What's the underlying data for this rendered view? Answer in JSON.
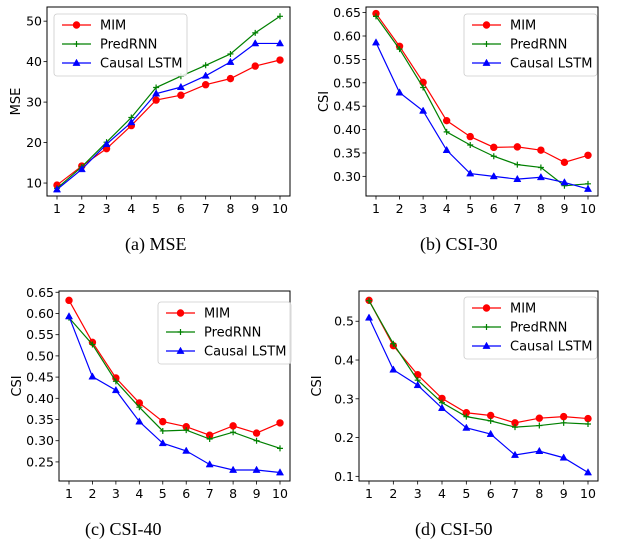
{
  "figure": {
    "colors": {
      "MIM": "#ff0000",
      "PredRNN": "#008000",
      "Causal LSTM": "#0000ff"
    },
    "markers": {
      "MIM": "circle",
      "PredRNN": "plus",
      "Causal LSTM": "triangle"
    }
  },
  "chart_data": [
    {
      "type": "line",
      "caption": "(a)  MSE",
      "title": "",
      "xlabel": "",
      "ylabel": "MSE",
      "x": [
        1,
        2,
        3,
        4,
        5,
        6,
        7,
        8,
        9,
        10
      ],
      "xticks": [
        "1",
        "2",
        "3",
        "4",
        "5",
        "6",
        "7",
        "8",
        "9",
        "10"
      ],
      "yticks": [
        10,
        20,
        30,
        40,
        50
      ],
      "ytick_labels": [
        "10",
        "20",
        "30",
        "40",
        "50"
      ],
      "ylim": [
        6.8,
        53.5
      ],
      "legend": "top-left",
      "grid": false,
      "series": [
        {
          "name": "MIM",
          "values": [
            9.5,
            14.2,
            18.5,
            24.2,
            30.5,
            31.7,
            34.3,
            35.8,
            38.9,
            40.4
          ]
        },
        {
          "name": "PredRNN",
          "values": [
            8.7,
            14.0,
            20.1,
            26.2,
            33.6,
            36.4,
            39.1,
            41.9,
            47.1,
            51.2
          ]
        },
        {
          "name": "Causal LSTM",
          "values": [
            8.4,
            13.4,
            19.6,
            25.0,
            32.1,
            33.7,
            36.5,
            39.9,
            44.5,
            44.5
          ]
        }
      ]
    },
    {
      "type": "line",
      "caption": "(b)  CSI-30",
      "title": "",
      "xlabel": "",
      "ylabel": "CSI",
      "x": [
        1,
        2,
        3,
        4,
        5,
        6,
        7,
        8,
        9,
        10
      ],
      "xticks": [
        "1",
        "2",
        "3",
        "4",
        "5",
        "6",
        "7",
        "8",
        "9",
        "10"
      ],
      "yticks": [
        0.3,
        0.35,
        0.4,
        0.45,
        0.5,
        0.55,
        0.6,
        0.65
      ],
      "ytick_labels": [
        "0.30",
        "0.35",
        "0.40",
        "0.45",
        "0.50",
        "0.55",
        "0.60",
        "0.65"
      ],
      "ylim": [
        0.258,
        0.662
      ],
      "legend": "top-right",
      "grid": false,
      "series": [
        {
          "name": "MIM",
          "values": [
            0.648,
            0.578,
            0.501,
            0.419,
            0.385,
            0.362,
            0.363,
            0.356,
            0.33,
            0.345
          ]
        },
        {
          "name": "PredRNN",
          "values": [
            0.642,
            0.572,
            0.49,
            0.395,
            0.367,
            0.343,
            0.325,
            0.319,
            0.28,
            0.284
          ]
        },
        {
          "name": "Causal LSTM",
          "values": [
            0.586,
            0.479,
            0.44,
            0.356,
            0.306,
            0.3,
            0.294,
            0.298,
            0.287,
            0.273
          ]
        }
      ]
    },
    {
      "type": "line",
      "caption": "(c)  CSI-40",
      "title": "",
      "xlabel": "",
      "ylabel": "CSI",
      "x": [
        1,
        2,
        3,
        4,
        5,
        6,
        7,
        8,
        9,
        10
      ],
      "xticks": [
        "1",
        "2",
        "3",
        "4",
        "5",
        "6",
        "7",
        "8",
        "9",
        "10"
      ],
      "yticks": [
        0.25,
        0.3,
        0.35,
        0.4,
        0.45,
        0.5,
        0.55,
        0.6,
        0.65
      ],
      "ytick_labels": [
        "0.25",
        "0.30",
        "0.35",
        "0.40",
        "0.45",
        "0.50",
        "0.55",
        "0.60",
        "0.65"
      ],
      "ylim": [
        0.205,
        0.653
      ],
      "legend": "top-right",
      "grid": false,
      "series": [
        {
          "name": "MIM",
          "values": [
            0.631,
            0.532,
            0.448,
            0.389,
            0.345,
            0.333,
            0.313,
            0.335,
            0.318,
            0.342
          ]
        },
        {
          "name": "PredRNN",
          "values": [
            0.59,
            0.527,
            0.44,
            0.379,
            0.323,
            0.325,
            0.304,
            0.32,
            0.3,
            0.282
          ]
        },
        {
          "name": "Causal LSTM",
          "values": [
            0.593,
            0.451,
            0.419,
            0.345,
            0.294,
            0.276,
            0.244,
            0.231,
            0.231,
            0.225
          ]
        }
      ]
    },
    {
      "type": "line",
      "caption": "(d)  CSI-50",
      "title": "",
      "xlabel": "",
      "ylabel": "CSI",
      "x": [
        1,
        2,
        3,
        4,
        5,
        6,
        7,
        8,
        9,
        10
      ],
      "xticks": [
        "1",
        "2",
        "3",
        "4",
        "5",
        "6",
        "7",
        "8",
        "9",
        "10"
      ],
      "yticks": [
        0.1,
        0.2,
        0.3,
        0.4,
        0.5
      ],
      "ytick_labels": [
        "0.1",
        "0.2",
        "0.3",
        "0.4",
        "0.5"
      ],
      "ylim": [
        0.088,
        0.578
      ],
      "legend": "top-right",
      "grid": false,
      "series": [
        {
          "name": "MIM",
          "values": [
            0.554,
            0.437,
            0.362,
            0.301,
            0.264,
            0.257,
            0.238,
            0.25,
            0.254,
            0.249
          ]
        },
        {
          "name": "PredRNN",
          "values": [
            0.553,
            0.442,
            0.348,
            0.29,
            0.254,
            0.243,
            0.227,
            0.231,
            0.238,
            0.235
          ]
        },
        {
          "name": "Causal LSTM",
          "values": [
            0.509,
            0.375,
            0.335,
            0.276,
            0.225,
            0.209,
            0.155,
            0.165,
            0.148,
            0.11
          ]
        }
      ]
    }
  ]
}
